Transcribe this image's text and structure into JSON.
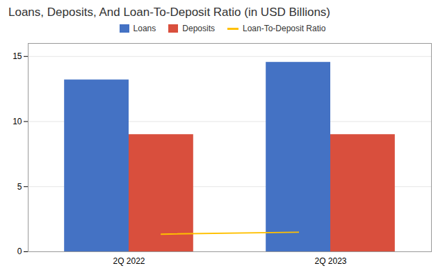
{
  "chart_data": {
    "type": "bar",
    "title": "Loans, Deposits, And Loan-To-Deposit Ratio (in USD Billions)",
    "categories": [
      "2Q 2022",
      "2Q 2023"
    ],
    "series": [
      {
        "name": "Loans",
        "color": "#4472C4",
        "values": [
          13.2,
          14.55
        ]
      },
      {
        "name": "Deposits",
        "color": "#D94F3D",
        "values": [
          9.0,
          9.0
        ]
      },
      {
        "name": "Loan-To-Deposit Ratio",
        "type": "line",
        "color": "#FFC000",
        "values": [
          1.35,
          1.5
        ]
      }
    ],
    "ylim": [
      0,
      16
    ],
    "yticks": [
      0,
      5,
      10,
      15
    ],
    "grid": true,
    "legend": "top"
  }
}
